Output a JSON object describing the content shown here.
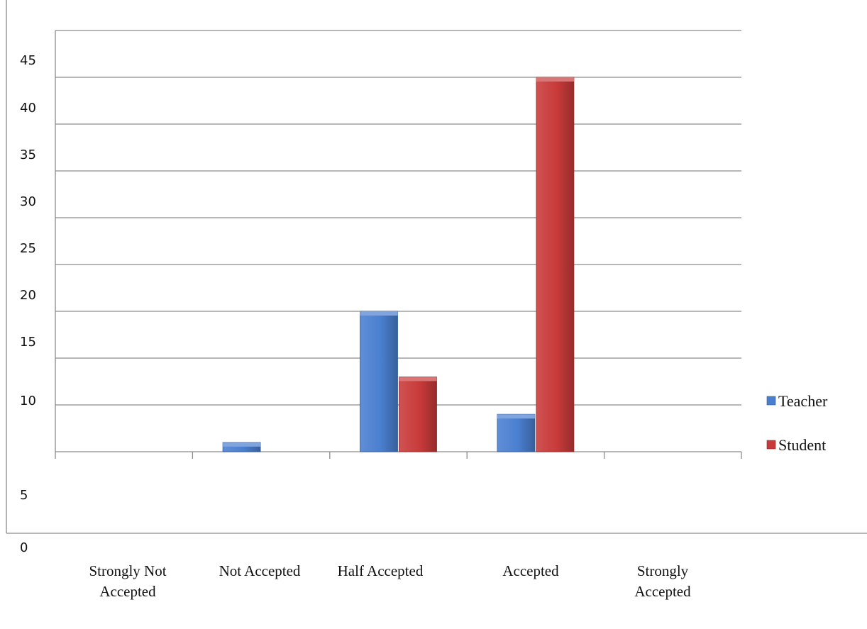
{
  "chart_data": {
    "type": "bar",
    "title": "",
    "xlabel": "",
    "ylabel": "",
    "categories": [
      "Strongly Not Accepted",
      "Not Accepted",
      "Half Accepted",
      "Accepted",
      "Strongly Accepted"
    ],
    "category_lines": [
      [
        "Strongly Not",
        "Accepted"
      ],
      [
        "Not Accepted"
      ],
      [
        "Half Accepted"
      ],
      [
        "Accepted"
      ],
      [
        "Strongly",
        "Accepted"
      ]
    ],
    "series": [
      {
        "name": "Teacher",
        "color": "#4a7fd0",
        "values": [
          0,
          1,
          15,
          4,
          0
        ]
      },
      {
        "name": "Student",
        "color": "#c83a3a",
        "values": [
          0,
          0,
          8,
          40,
          0
        ]
      }
    ],
    "ylim": [
      0,
      45
    ],
    "y_tick_labels": [
      "45",
      "40",
      "35",
      "30",
      "25",
      "20",
      "15",
      "10",
      "5",
      "0"
    ],
    "grid": true,
    "legend_position": "right"
  }
}
